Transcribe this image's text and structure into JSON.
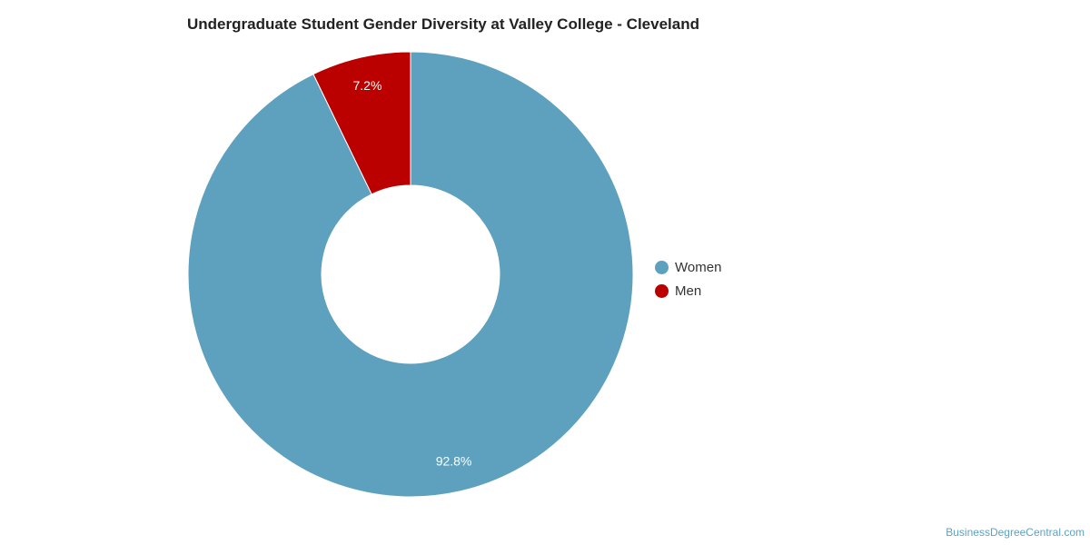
{
  "chart_data": {
    "type": "pie",
    "title": "Undergraduate Student Gender Diversity at Valley College - Cleveland",
    "donut": true,
    "categories": [
      "Women",
      "Men"
    ],
    "values": [
      92.8,
      7.2
    ],
    "data_labels": [
      "92.8%",
      "7.2%"
    ],
    "colors": [
      "#5ea1be",
      "#bb0000"
    ],
    "legend": "right"
  },
  "credit": "BusinessDegreeCentral.com"
}
